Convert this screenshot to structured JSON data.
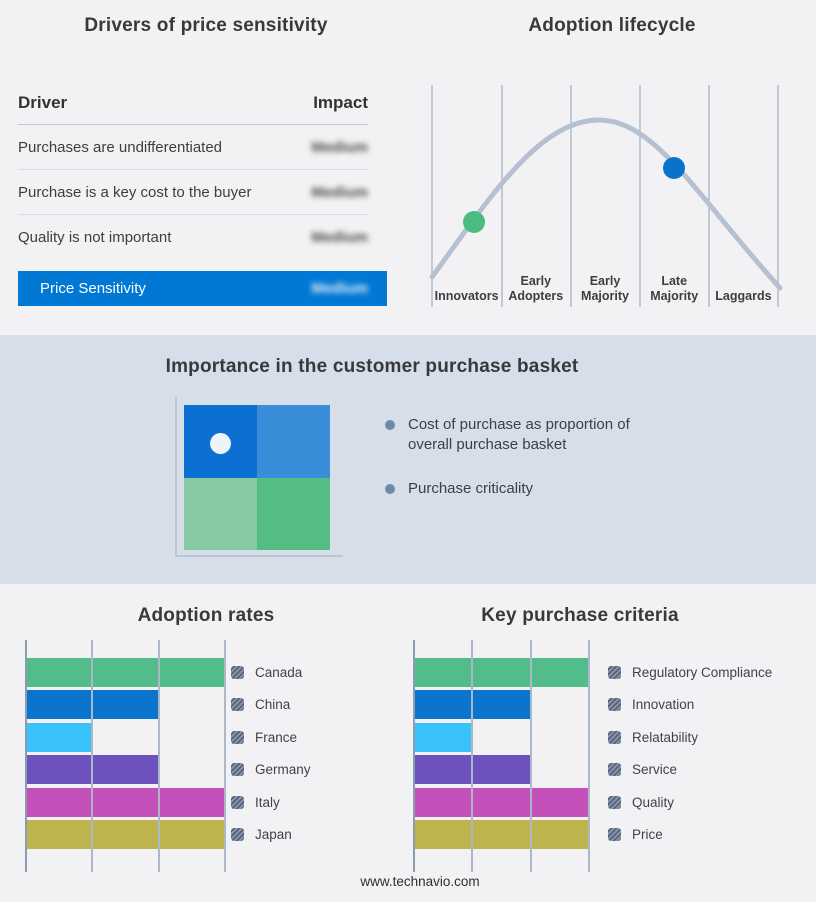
{
  "footer": {
    "url": "www.technavio.com"
  },
  "colors": {
    "page_bg": "#f2f2f4",
    "band_bg": "#d5dee9",
    "accent_blue": "#0078d4",
    "curve": "#b5c0d1",
    "gridline": "#aab8ca",
    "axis": "#8a9cb2",
    "bullet": "#7089ab",
    "legend_swatch_base": "#8593a8",
    "legend_swatch_stripe": "#4f5c73"
  },
  "chart_data": [
    {
      "id": "drivers_of_price_sensitivity",
      "type": "table",
      "title": "Drivers of price sensitivity",
      "columns": [
        "Driver",
        "Impact"
      ],
      "rows": [
        {
          "driver": "Purchases are undifferentiated",
          "impact": "Medium",
          "impact_obscured": true
        },
        {
          "driver": "Purchase is a key cost to the buyer",
          "impact": "Medium",
          "impact_obscured": true
        },
        {
          "driver": "Quality is not important",
          "impact": "Medium",
          "impact_obscured": true
        }
      ],
      "highlight_row": {
        "driver": "Price Sensitivity",
        "impact": "Medium",
        "impact_obscured": true,
        "background": "#0078d4"
      }
    },
    {
      "id": "adoption_lifecycle",
      "type": "line",
      "title": "Adoption lifecycle",
      "shape": "bell curve over five adoption stages, no numeric axes shown",
      "categories": [
        "Innovators",
        "Early Adopters",
        "Early Majority",
        "Late Majority",
        "Laggards"
      ],
      "stage_labels": [
        "Innovators",
        "Early\nAdopters",
        "Early\nMajority",
        "Late\nMajority",
        "Laggards"
      ],
      "markers": [
        {
          "stage": "Innovators",
          "position": "rising slope",
          "color": "#4cbb82"
        },
        {
          "stage": "Late Majority",
          "position": "falling slope",
          "color": "#0b72cb"
        }
      ]
    },
    {
      "id": "importance_in_purchase_basket",
      "type": "heatmap",
      "title": "Importance in the customer purchase basket",
      "grid": "2x2 quadrant, no axis labels",
      "cell_colors": [
        [
          "#0b70d1",
          "#3a8ed9"
        ],
        [
          "#87c9a3",
          "#55bd84"
        ]
      ],
      "marker_cell": "top-left",
      "marker_color": "#ecf4fa",
      "bullets": [
        "Cost of purchase as proportion of overall purchase basket",
        "Purchase criticality"
      ]
    },
    {
      "id": "adoption_rates",
      "type": "bar",
      "title": "Adoption rates",
      "orientation": "horizontal",
      "categories": [
        "Canada",
        "China",
        "France",
        "Germany",
        "Italy",
        "Japan"
      ],
      "values": [
        100,
        66.7,
        33.3,
        66.7,
        100,
        100
      ],
      "xmax": 100,
      "value_labels_shown": false,
      "gridlines": 4,
      "colors": [
        "#52bd8b",
        "#0b74cd",
        "#38c2f9",
        "#6d52bd",
        "#c351b9",
        "#bdb44e"
      ],
      "legend_position": "right"
    },
    {
      "id": "key_purchase_criteria",
      "type": "bar",
      "title": "Key purchase criteria",
      "orientation": "horizontal",
      "categories": [
        "Regulatory Compliance",
        "Innovation",
        "Relatability",
        "Service",
        "Quality",
        "Price"
      ],
      "values": [
        100,
        66.7,
        33.3,
        66.7,
        100,
        100
      ],
      "xmax": 100,
      "value_labels_shown": false,
      "gridlines": 4,
      "colors": [
        "#52bd8b",
        "#0b74cd",
        "#38c2f9",
        "#6d52bd",
        "#c351b9",
        "#bdb44e"
      ],
      "legend_position": "right"
    }
  ]
}
